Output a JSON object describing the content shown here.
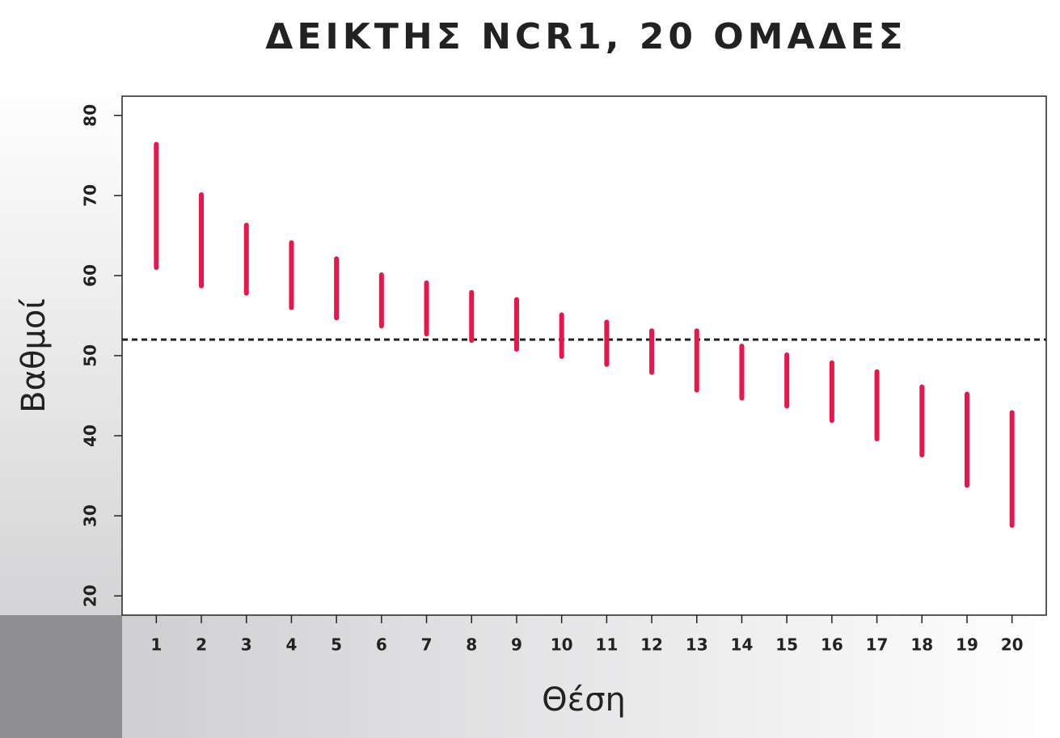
{
  "chart_data": {
    "type": "range",
    "title": "ΔΕΙΚΤΗΣ NCR1, 20 ΟΜΑΔΕΣ",
    "x_label": "Θέση",
    "y_label": "Βαθμοί",
    "x": [
      1,
      2,
      3,
      4,
      5,
      6,
      7,
      8,
      9,
      10,
      11,
      12,
      13,
      14,
      15,
      16,
      17,
      18,
      19,
      20
    ],
    "highs": [
      76.4,
      70.1,
      66.3,
      64.1,
      62.1,
      60.1,
      59.1,
      57.9,
      57.0,
      55.1,
      54.2,
      53.1,
      53.1,
      51.2,
      50.1,
      49.1,
      48.0,
      46.1,
      45.2,
      42.9
    ],
    "lows": [
      61.0,
      58.7,
      57.8,
      56.0,
      54.7,
      53.7,
      52.7,
      51.9,
      50.8,
      49.9,
      48.9,
      47.9,
      45.7,
      44.7,
      43.7,
      41.9,
      39.6,
      37.6,
      33.8,
      28.8
    ],
    "color": "#e8164a",
    "reference_line": 52,
    "xlim": [
      0.24,
      20.76
    ],
    "ylim": [
      17.6,
      82.4
    ],
    "xticks": [
      1,
      2,
      3,
      4,
      5,
      6,
      7,
      8,
      9,
      10,
      11,
      12,
      13,
      14,
      15,
      16,
      17,
      18,
      19,
      20
    ],
    "yticks": [
      20,
      30,
      40,
      50,
      60,
      70,
      80
    ]
  }
}
